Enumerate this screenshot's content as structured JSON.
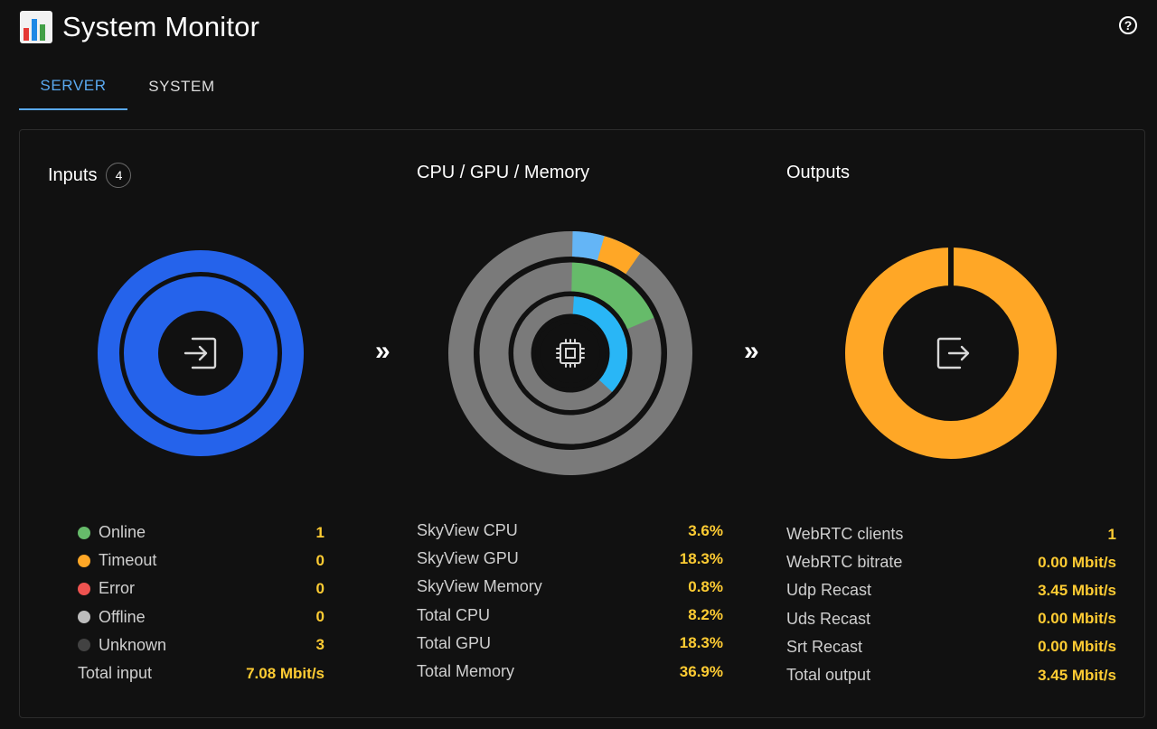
{
  "app": {
    "title": "System Monitor",
    "help_label": "?"
  },
  "tabs": [
    {
      "label": "SERVER",
      "active": true
    },
    {
      "label": "SYSTEM",
      "active": false
    }
  ],
  "colors": {
    "accent": "#5aa9f0",
    "value": "#ffcc33",
    "online": "#66bb6a",
    "timeout": "#ffa726",
    "error": "#ef5350",
    "offline": "#bdbdbd",
    "unknown": "#424242",
    "inputs_ring": "#2563eb",
    "outputs_ring": "#ffa726",
    "track": "#7a7a7a"
  },
  "inputs": {
    "title": "Inputs",
    "badge": "4",
    "icon": "input-icon",
    "rows": [
      {
        "label": "Online",
        "value": "1",
        "status": "online"
      },
      {
        "label": "Timeout",
        "value": "0",
        "status": "timeout"
      },
      {
        "label": "Error",
        "value": "0",
        "status": "error"
      },
      {
        "label": "Offline",
        "value": "0",
        "status": "offline"
      },
      {
        "label": "Unknown",
        "value": "3",
        "status": "unknown"
      }
    ],
    "total": {
      "label": "Total input",
      "value": "7.08 Mbit/s"
    }
  },
  "resources": {
    "title": "CPU / GPU / Memory",
    "icon": "chip-icon",
    "rows": [
      {
        "label": "SkyView CPU",
        "value": "3.6%"
      },
      {
        "label": "SkyView GPU",
        "value": "18.3%"
      },
      {
        "label": "SkyView Memory",
        "value": "0.8%"
      },
      {
        "label": "Total CPU",
        "value": "8.2%"
      },
      {
        "label": "Total GPU",
        "value": "18.3%"
      },
      {
        "label": "Total Memory",
        "value": "36.9%"
      }
    ]
  },
  "outputs": {
    "title": "Outputs",
    "icon": "output-icon",
    "rows": [
      {
        "label": "WebRTC clients",
        "value": "1"
      },
      {
        "label": "WebRTC bitrate",
        "value": "0.00 Mbit/s"
      },
      {
        "label": "Udp Recast",
        "value": "3.45 Mbit/s"
      },
      {
        "label": "Uds Recast",
        "value": "0.00 Mbit/s"
      },
      {
        "label": "Srt Recast",
        "value": "0.00 Mbit/s"
      },
      {
        "label": "Total output",
        "value": "3.45 Mbit/s"
      }
    ]
  },
  "arrow_glyph": "»"
}
